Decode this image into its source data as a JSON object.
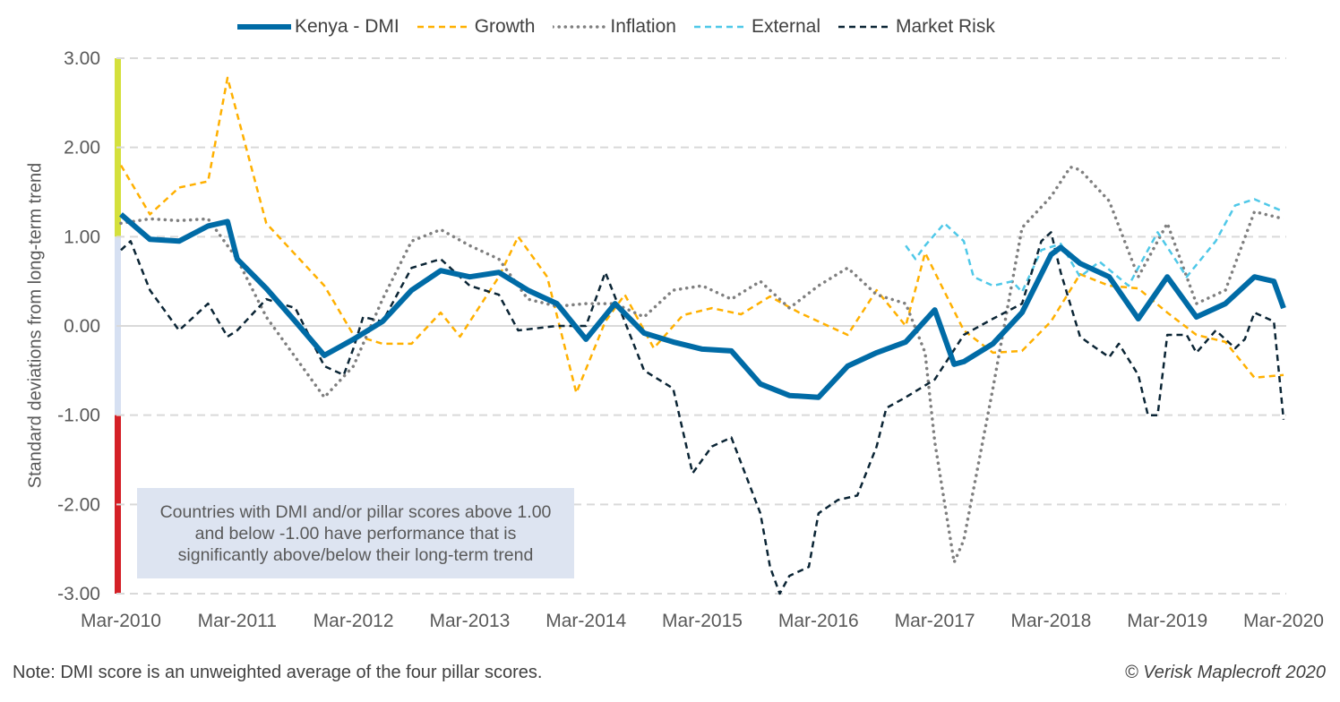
{
  "chart_data": {
    "type": "line",
    "title": "",
    "xlabel": "",
    "ylabel": "Standard deviations from long-term trend",
    "ylim": [
      -3,
      3
    ],
    "xlim": [
      "2010-03",
      "2020-03"
    ],
    "yticks": [
      "3.00",
      "2.00",
      "1.00",
      "0.00",
      "-1.00",
      "-2.00",
      "-3.00"
    ],
    "xticks": [
      "Mar-2010",
      "Mar-2011",
      "Mar-2012",
      "Mar-2013",
      "Mar-2014",
      "Mar-2015",
      "Mar-2016",
      "Mar-2017",
      "Mar-2018",
      "Mar-2019",
      "Mar-2020"
    ],
    "grid": "horizontal dashed",
    "legend_position": "top",
    "bands": [
      {
        "from": 1,
        "to": 3,
        "color": "#D4E03C"
      },
      {
        "from": -1,
        "to": 1,
        "color": "#D6E0F2"
      },
      {
        "from": -3,
        "to": -1,
        "color": "#D42027"
      }
    ],
    "annotation": "Countries with DMI and/or pillar scores above 1.00 and below -1.00 have performance that is significantly above/below their long-term trend",
    "series": [
      {
        "name": "Kenya - DMI",
        "color": "#006BA6",
        "style": "solid-thick",
        "points": [
          [
            "2010-03",
            1.25
          ],
          [
            "2010-06",
            0.97
          ],
          [
            "2010-09",
            0.95
          ],
          [
            "2010-12",
            1.12
          ],
          [
            "2011-02",
            1.17
          ],
          [
            "2011-03",
            0.75
          ],
          [
            "2011-06",
            0.42
          ],
          [
            "2011-09",
            0.05
          ],
          [
            "2011-12",
            -0.33
          ],
          [
            "2012-03",
            -0.15
          ],
          [
            "2012-06",
            0.05
          ],
          [
            "2012-09",
            0.4
          ],
          [
            "2012-12",
            0.62
          ],
          [
            "2013-03",
            0.55
          ],
          [
            "2013-06",
            0.6
          ],
          [
            "2013-09",
            0.4
          ],
          [
            "2013-12",
            0.25
          ],
          [
            "2014-03",
            -0.15
          ],
          [
            "2014-06",
            0.25
          ],
          [
            "2014-09",
            -0.08
          ],
          [
            "2014-12",
            -0.18
          ],
          [
            "2015-03",
            -0.26
          ],
          [
            "2015-06",
            -0.28
          ],
          [
            "2015-09",
            -0.65
          ],
          [
            "2015-12",
            -0.78
          ],
          [
            "2016-03",
            -0.8
          ],
          [
            "2016-06",
            -0.45
          ],
          [
            "2016-09",
            -0.3
          ],
          [
            "2016-12",
            -0.18
          ],
          [
            "2017-03",
            0.18
          ],
          [
            "2017-05",
            -0.43
          ],
          [
            "2017-06",
            -0.4
          ],
          [
            "2017-09",
            -0.2
          ],
          [
            "2017-12",
            0.15
          ],
          [
            "2018-03",
            0.8
          ],
          [
            "2018-04",
            0.88
          ],
          [
            "2018-06",
            0.7
          ],
          [
            "2018-09",
            0.55
          ],
          [
            "2018-12",
            0.08
          ],
          [
            "2019-03",
            0.55
          ],
          [
            "2019-06",
            0.1
          ],
          [
            "2019-09",
            0.25
          ],
          [
            "2019-12",
            0.55
          ],
          [
            "2020-02",
            0.5
          ],
          [
            "2020-03",
            0.2
          ]
        ]
      },
      {
        "name": "Growth",
        "color": "#FFB000",
        "style": "dashed",
        "points": [
          [
            "2010-03",
            1.8
          ],
          [
            "2010-06",
            1.25
          ],
          [
            "2010-09",
            1.55
          ],
          [
            "2010-12",
            1.62
          ],
          [
            "2011-02",
            2.78
          ],
          [
            "2011-06",
            1.15
          ],
          [
            "2011-09",
            0.8
          ],
          [
            "2011-12",
            0.45
          ],
          [
            "2012-03",
            -0.1
          ],
          [
            "2012-06",
            -0.2
          ],
          [
            "2012-09",
            -0.2
          ],
          [
            "2012-12",
            0.15
          ],
          [
            "2013-02",
            -0.12
          ],
          [
            "2013-06",
            0.55
          ],
          [
            "2013-08",
            1.0
          ],
          [
            "2013-11",
            0.55
          ],
          [
            "2014-02",
            -0.75
          ],
          [
            "2014-05",
            0.05
          ],
          [
            "2014-07",
            0.35
          ],
          [
            "2014-10",
            -0.25
          ],
          [
            "2015-01",
            0.12
          ],
          [
            "2015-04",
            0.2
          ],
          [
            "2015-07",
            0.13
          ],
          [
            "2015-10",
            0.33
          ],
          [
            "2016-01",
            0.15
          ],
          [
            "2016-06",
            -0.1
          ],
          [
            "2016-09",
            0.4
          ],
          [
            "2016-12",
            0.0
          ],
          [
            "2017-02",
            0.82
          ],
          [
            "2017-06",
            -0.05
          ],
          [
            "2017-09",
            -0.3
          ],
          [
            "2017-12",
            -0.28
          ],
          [
            "2018-03",
            0.05
          ],
          [
            "2018-06",
            0.58
          ],
          [
            "2018-09",
            0.45
          ],
          [
            "2018-12",
            0.42
          ],
          [
            "2019-03",
            0.15
          ],
          [
            "2019-06",
            -0.1
          ],
          [
            "2019-09",
            -0.18
          ],
          [
            "2019-12",
            -0.58
          ],
          [
            "2020-03",
            -0.55
          ]
        ]
      },
      {
        "name": "Inflation",
        "color": "#7F7F7F",
        "style": "dotted",
        "points": [
          [
            "2010-03",
            1.15
          ],
          [
            "2010-06",
            1.2
          ],
          [
            "2010-09",
            1.18
          ],
          [
            "2010-12",
            1.2
          ],
          [
            "2011-03",
            0.75
          ],
          [
            "2011-06",
            0.1
          ],
          [
            "2011-09",
            -0.35
          ],
          [
            "2011-12",
            -0.8
          ],
          [
            "2012-03",
            -0.45
          ],
          [
            "2012-06",
            0.3
          ],
          [
            "2012-09",
            0.95
          ],
          [
            "2012-12",
            1.08
          ],
          [
            "2013-03",
            0.9
          ],
          [
            "2013-06",
            0.75
          ],
          [
            "2013-09",
            0.3
          ],
          [
            "2013-12",
            0.22
          ],
          [
            "2014-03",
            0.25
          ],
          [
            "2014-06",
            0.25
          ],
          [
            "2014-09",
            0.1
          ],
          [
            "2014-12",
            0.4
          ],
          [
            "2015-03",
            0.45
          ],
          [
            "2015-06",
            0.3
          ],
          [
            "2015-09",
            0.5
          ],
          [
            "2015-12",
            0.2
          ],
          [
            "2016-03",
            0.45
          ],
          [
            "2016-06",
            0.65
          ],
          [
            "2016-09",
            0.35
          ],
          [
            "2016-12",
            0.25
          ],
          [
            "2017-02",
            -0.3
          ],
          [
            "2017-03",
            -1.3
          ],
          [
            "2017-05",
            -2.65
          ],
          [
            "2017-06",
            -2.4
          ],
          [
            "2017-09",
            -0.7
          ],
          [
            "2017-12",
            1.1
          ],
          [
            "2018-03",
            1.45
          ],
          [
            "2018-05",
            1.78
          ],
          [
            "2018-06",
            1.75
          ],
          [
            "2018-09",
            1.4
          ],
          [
            "2018-12",
            0.55
          ],
          [
            "2019-03",
            1.15
          ],
          [
            "2019-06",
            0.25
          ],
          [
            "2019-09",
            0.4
          ],
          [
            "2019-12",
            1.28
          ],
          [
            "2020-03",
            1.2
          ]
        ]
      },
      {
        "name": "External",
        "color": "#4FC8E8",
        "style": "dashed",
        "points": [
          [
            "2016-12",
            0.9
          ],
          [
            "2017-01",
            0.75
          ],
          [
            "2017-02",
            0.9
          ],
          [
            "2017-04",
            1.15
          ],
          [
            "2017-06",
            0.95
          ],
          [
            "2017-07",
            0.55
          ],
          [
            "2017-09",
            0.45
          ],
          [
            "2017-11",
            0.5
          ],
          [
            "2017-12",
            0.38
          ],
          [
            "2018-02",
            0.85
          ],
          [
            "2018-04",
            0.92
          ],
          [
            "2018-06",
            0.55
          ],
          [
            "2018-08",
            0.72
          ],
          [
            "2018-11",
            0.45
          ],
          [
            "2019-02",
            1.05
          ],
          [
            "2019-05",
            0.55
          ],
          [
            "2019-08",
            0.95
          ],
          [
            "2019-10",
            1.35
          ],
          [
            "2019-12",
            1.42
          ],
          [
            "2020-03",
            1.28
          ]
        ]
      },
      {
        "name": "Market Risk",
        "color": "#0B2535",
        "style": "dashed",
        "points": [
          [
            "2010-03",
            0.85
          ],
          [
            "2010-04",
            0.95
          ],
          [
            "2010-06",
            0.4
          ],
          [
            "2010-09",
            -0.05
          ],
          [
            "2010-12",
            0.25
          ],
          [
            "2011-02",
            -0.12
          ],
          [
            "2011-03",
            -0.05
          ],
          [
            "2011-06",
            0.3
          ],
          [
            "2011-09",
            0.2
          ],
          [
            "2011-12",
            -0.45
          ],
          [
            "2012-02",
            -0.55
          ],
          [
            "2012-03",
            -0.25
          ],
          [
            "2012-04",
            0.1
          ],
          [
            "2012-06",
            0.05
          ],
          [
            "2012-09",
            0.65
          ],
          [
            "2012-12",
            0.75
          ],
          [
            "2013-03",
            0.45
          ],
          [
            "2013-06",
            0.35
          ],
          [
            "2013-08",
            -0.05
          ],
          [
            "2013-12",
            0.0
          ],
          [
            "2014-03",
            0.0
          ],
          [
            "2014-05",
            0.6
          ],
          [
            "2014-09",
            -0.5
          ],
          [
            "2014-12",
            -0.7
          ],
          [
            "2015-02",
            -1.65
          ],
          [
            "2015-04",
            -1.35
          ],
          [
            "2015-06",
            -1.25
          ],
          [
            "2015-09",
            -2.1
          ],
          [
            "2015-10",
            -2.7
          ],
          [
            "2015-11",
            -3.0
          ],
          [
            "2015-12",
            -2.8
          ],
          [
            "2016-02",
            -2.7
          ],
          [
            "2016-03",
            -2.1
          ],
          [
            "2016-05",
            -1.95
          ],
          [
            "2016-07",
            -1.9
          ],
          [
            "2016-09",
            -1.35
          ],
          [
            "2016-10",
            -0.92
          ],
          [
            "2016-12",
            -0.8
          ],
          [
            "2017-03",
            -0.6
          ],
          [
            "2017-06",
            -0.1
          ],
          [
            "2017-09",
            0.08
          ],
          [
            "2017-12",
            0.25
          ],
          [
            "2018-02",
            0.95
          ],
          [
            "2018-03",
            1.05
          ],
          [
            "2018-04",
            0.6
          ],
          [
            "2018-06",
            -0.12
          ],
          [
            "2018-07",
            -0.2
          ],
          [
            "2018-09",
            -0.35
          ],
          [
            "2018-10",
            -0.2
          ],
          [
            "2018-12",
            -0.55
          ],
          [
            "2019-01",
            -1.0
          ],
          [
            "2019-02",
            -1.0
          ],
          [
            "2019-03",
            -0.1
          ],
          [
            "2019-05",
            -0.1
          ],
          [
            "2019-06",
            -0.3
          ],
          [
            "2019-08",
            -0.05
          ],
          [
            "2019-10",
            -0.25
          ],
          [
            "2019-11",
            -0.15
          ],
          [
            "2019-12",
            0.15
          ],
          [
            "2020-02",
            0.05
          ],
          [
            "2020-03",
            -1.05
          ]
        ]
      }
    ]
  },
  "footer": {
    "note": "Note: DMI score is an unweighted average of the four pillar scores.",
    "copyright": "© Verisk Maplecroft 2020"
  }
}
